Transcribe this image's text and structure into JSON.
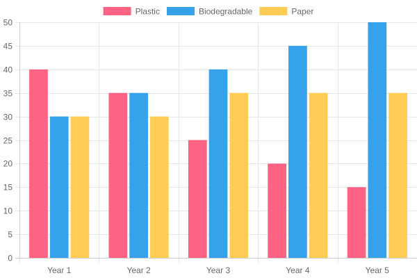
{
  "chart_data": {
    "type": "bar",
    "categories": [
      "Year 1",
      "Year 2",
      "Year 3",
      "Year 4",
      "Year 5"
    ],
    "series": [
      {
        "name": "Plastic",
        "color": "#ff6384",
        "values": [
          40,
          35,
          25,
          20,
          15
        ]
      },
      {
        "name": "Biodegradable",
        "color": "#36a2eb",
        "values": [
          30,
          35,
          40,
          45,
          50
        ]
      },
      {
        "name": "Paper",
        "color": "#ffcd56",
        "values": [
          30,
          30,
          35,
          35,
          35
        ]
      }
    ],
    "title": "",
    "xlabel": "",
    "ylabel": "",
    "ylim": [
      0,
      50
    ],
    "yticks": [
      0,
      5,
      10,
      15,
      20,
      25,
      30,
      35,
      40,
      45,
      50
    ],
    "grid": true,
    "legend_position": "top-center"
  }
}
